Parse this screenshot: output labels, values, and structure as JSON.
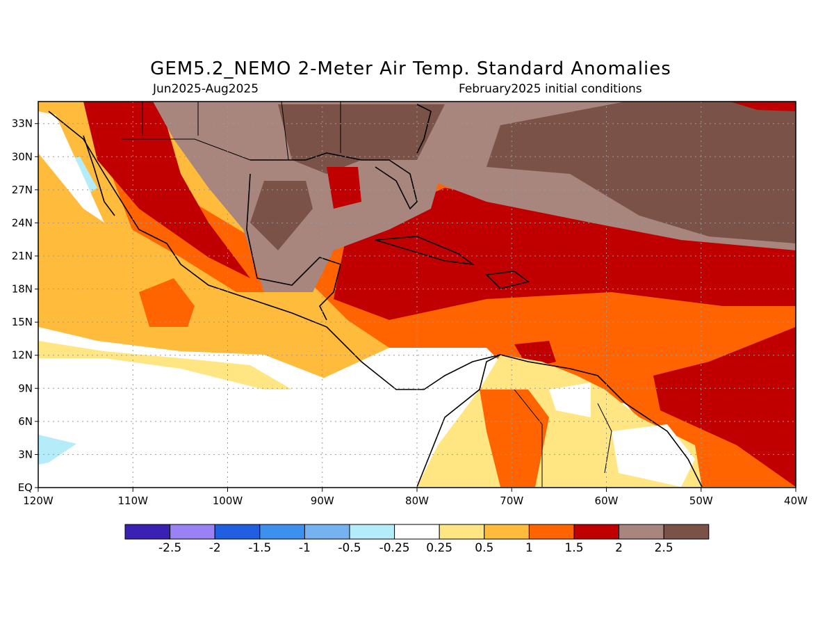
{
  "title": "GEM5.2_NEMO 2-Meter Air Temp. Standard Anomalies",
  "subtitle_left": "Jun2025-Aug2025",
  "subtitle_right": "February2025 initial conditions",
  "map": {
    "lon_range": [
      -120,
      -40
    ],
    "lat_range": [
      0,
      35
    ],
    "x_ticks": [
      "120W",
      "110W",
      "100W",
      "90W",
      "80W",
      "70W",
      "60W",
      "50W",
      "40W"
    ],
    "y_ticks": [
      "EQ",
      "3N",
      "6N",
      "9N",
      "12N",
      "15N",
      "18N",
      "21N",
      "24N",
      "27N",
      "30N",
      "33N"
    ],
    "gridlines": true
  },
  "colorbar": {
    "labels": [
      "-2.5",
      "-2",
      "-1.5",
      "-1",
      "-0.5",
      "-0.25",
      "0.25",
      "0.5",
      "1",
      "1.5",
      "2",
      "2.5"
    ],
    "colors": [
      "#3b21b3",
      "#9a82f5",
      "#1f5fe0",
      "#3d90ee",
      "#76b2f2",
      "#b4ecfa",
      "#ffffff",
      "#ffe682",
      "#ffbb3c",
      "#ff6400",
      "#c00000",
      "#a8857d",
      "#7a5247"
    ]
  }
}
